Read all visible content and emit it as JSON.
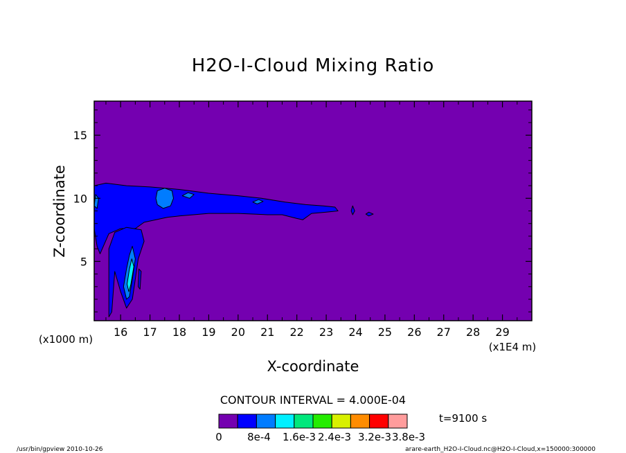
{
  "chart_data": {
    "type": "heatmap",
    "title": "H2O-I-Cloud Mixing Ratio",
    "xlabel": "X-coordinate",
    "ylabel": "Z-coordinate",
    "x_unit_label": "(x1E4 m)",
    "y_unit_label": "(x1000 m)",
    "xlim": [
      15.1,
      30.0
    ],
    "ylim": [
      0.3,
      17.7
    ],
    "x_ticks": [
      "16",
      "17",
      "18",
      "19",
      "20",
      "21",
      "22",
      "23",
      "24",
      "25",
      "26",
      "27",
      "28",
      "29"
    ],
    "y_ticks": [
      "5",
      "10",
      "15"
    ],
    "contour_interval_text": "CONTOUR INTERVAL = 4.000E-04",
    "time_text": "t=9100 s",
    "colorbar": {
      "colors": [
        "#7400b0",
        "#0000ff",
        "#007cff",
        "#00f0ff",
        "#00e87c",
        "#24ec00",
        "#d8f000",
        "#ff8c00",
        "#ff0000",
        "#ff9c9c"
      ],
      "labels": [
        "0",
        "8e-4",
        "1.6e-3",
        "2.4e-3",
        "3.2e-3",
        "3.8e-3"
      ]
    },
    "background_level": 0,
    "regions": [
      {
        "name": "upper cloud band",
        "level": 1,
        "pts": [
          [
            15.1,
            8.6
          ],
          [
            15.1,
            11.0
          ],
          [
            15.5,
            11.2
          ],
          [
            16.2,
            11.0
          ],
          [
            17.0,
            10.9
          ],
          [
            18.0,
            10.7
          ],
          [
            19.0,
            10.4
          ],
          [
            20.0,
            10.2
          ],
          [
            20.8,
            10.0
          ],
          [
            21.6,
            9.7
          ],
          [
            22.3,
            9.5
          ],
          [
            22.9,
            9.4
          ],
          [
            23.3,
            9.3
          ],
          [
            23.4,
            9.0
          ],
          [
            23.0,
            8.9
          ],
          [
            22.5,
            8.8
          ],
          [
            22.2,
            8.3
          ],
          [
            22.0,
            8.4
          ],
          [
            21.5,
            8.7
          ],
          [
            21.0,
            8.7
          ],
          [
            20.0,
            8.8
          ],
          [
            19.0,
            8.8
          ],
          [
            18.0,
            8.6
          ],
          [
            17.6,
            8.5
          ],
          [
            17.2,
            8.3
          ],
          [
            16.8,
            8.1
          ],
          [
            16.5,
            7.6
          ],
          [
            16.0,
            7.6
          ],
          [
            15.6,
            7.2
          ],
          [
            15.3,
            5.6
          ],
          [
            15.2,
            6.2
          ],
          [
            15.1,
            7.6
          ]
        ]
      },
      {
        "name": "lower cloud plume",
        "level": 1,
        "pts": [
          [
            15.6,
            6.0
          ],
          [
            15.8,
            7.3
          ],
          [
            16.2,
            7.7
          ],
          [
            16.7,
            7.5
          ],
          [
            16.8,
            6.6
          ],
          [
            16.6,
            5.2
          ],
          [
            16.5,
            3.6
          ],
          [
            16.4,
            2.0
          ],
          [
            16.2,
            1.3
          ],
          [
            16.0,
            2.6
          ],
          [
            15.8,
            4.2
          ],
          [
            15.7,
            1.0
          ],
          [
            15.6,
            0.6
          ],
          [
            15.6,
            3.2
          ]
        ]
      },
      {
        "name": "cloud blob 17.5",
        "level": 2,
        "pts": [
          [
            17.2,
            10.0
          ],
          [
            17.25,
            10.6
          ],
          [
            17.5,
            10.8
          ],
          [
            17.75,
            10.6
          ],
          [
            17.8,
            10.0
          ],
          [
            17.7,
            9.4
          ],
          [
            17.45,
            9.2
          ],
          [
            17.25,
            9.5
          ]
        ]
      },
      {
        "name": "cloud blob 18.3",
        "level": 2,
        "pts": [
          [
            18.1,
            10.2
          ],
          [
            18.3,
            10.45
          ],
          [
            18.5,
            10.3
          ],
          [
            18.35,
            10.0
          ]
        ]
      },
      {
        "name": "cloud blob 20.7",
        "level": 2,
        "pts": [
          [
            20.5,
            9.7
          ],
          [
            20.7,
            9.9
          ],
          [
            20.85,
            9.75
          ],
          [
            20.65,
            9.55
          ]
        ]
      },
      {
        "name": "left edge blob",
        "level": 2,
        "pts": [
          [
            15.1,
            9.4
          ],
          [
            15.15,
            10.3
          ],
          [
            15.25,
            10.0
          ],
          [
            15.2,
            9.2
          ]
        ]
      },
      {
        "name": "plume core",
        "level": 2,
        "pts": [
          [
            16.1,
            3.0
          ],
          [
            16.2,
            4.4
          ],
          [
            16.3,
            5.5
          ],
          [
            16.4,
            6.2
          ],
          [
            16.5,
            5.2
          ],
          [
            16.4,
            3.6
          ],
          [
            16.3,
            2.2
          ],
          [
            16.2,
            2.0
          ]
        ]
      },
      {
        "name": "plume inner core",
        "level": 3,
        "pts": [
          [
            16.22,
            3.2
          ],
          [
            16.3,
            4.4
          ],
          [
            16.38,
            5.2
          ],
          [
            16.45,
            4.6
          ],
          [
            16.35,
            3.2
          ],
          [
            16.28,
            2.6
          ]
        ]
      },
      {
        "name": "isolated cell 23.9",
        "level": 1,
        "pts": [
          [
            23.85,
            9.0
          ],
          [
            23.9,
            9.4
          ],
          [
            23.97,
            9.0
          ],
          [
            23.9,
            8.7
          ]
        ]
      },
      {
        "name": "isolated cell 24.45",
        "level": 1,
        "pts": [
          [
            24.35,
            8.75
          ],
          [
            24.45,
            8.9
          ],
          [
            24.6,
            8.75
          ],
          [
            24.45,
            8.6
          ]
        ]
      },
      {
        "name": "isolated cell 16.65",
        "level": 1,
        "pts": [
          [
            16.6,
            3.0
          ],
          [
            16.62,
            4.4
          ],
          [
            16.7,
            4.2
          ],
          [
            16.66,
            2.8
          ]
        ]
      }
    ]
  },
  "footer": {
    "left": "/usr/bin/gpview   2010-10-26",
    "right": "arare-earth_H2O-I-Cloud.nc@H2O-I-Cloud,x=150000:300000"
  }
}
